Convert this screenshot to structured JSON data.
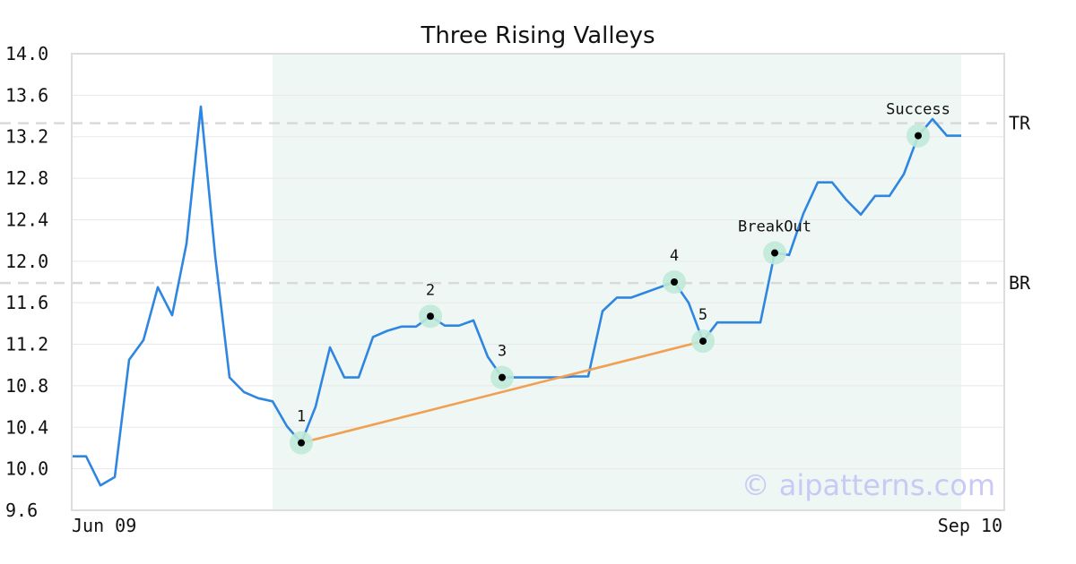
{
  "chart_data": {
    "type": "line",
    "title": "Three Rising Valleys",
    "ylim": [
      9.6,
      14.0
    ],
    "y_ticks": [
      "14.0",
      "13.6",
      "13.2",
      "12.8",
      "12.4",
      "12.0",
      "11.6",
      "11.2",
      "10.8",
      "10.4",
      "10.0",
      "9.6"
    ],
    "x_labels": {
      "start": "Jun 09",
      "end": "Sep 10"
    },
    "grid": true,
    "series": [
      {
        "values": [
          10.12,
          10.12,
          9.84,
          9.92,
          11.05,
          11.24,
          11.75,
          11.48,
          12.17,
          13.49,
          12.05,
          10.88,
          10.74,
          10.68,
          10.65,
          10.41,
          10.25,
          10.6,
          11.17,
          10.88,
          10.88,
          11.27,
          11.33,
          11.37,
          11.37,
          11.47,
          11.38,
          11.38,
          11.43,
          11.08,
          10.88,
          10.88,
          10.88,
          10.88,
          10.88,
          10.89,
          10.89,
          11.52,
          11.65,
          11.65,
          11.7,
          11.75,
          11.8,
          11.6,
          11.23,
          11.41,
          11.41,
          11.41,
          11.41,
          12.08,
          12.06,
          12.46,
          12.76,
          12.76,
          12.59,
          12.45,
          12.63,
          12.63,
          12.84,
          13.21,
          13.37,
          13.21,
          13.21
        ]
      }
    ],
    "pattern_region": {
      "start_index": 14,
      "end_index": 62
    },
    "levels": [
      {
        "label": "TR",
        "value": 13.33
      },
      {
        "label": "BR",
        "value": 11.79
      }
    ],
    "trendline": {
      "from_index": 16,
      "to_index": 44
    },
    "points": [
      {
        "label": "1",
        "index": 16,
        "value": 10.25
      },
      {
        "label": "2",
        "index": 25,
        "value": 11.47
      },
      {
        "label": "3",
        "index": 30,
        "value": 10.88
      },
      {
        "label": "4",
        "index": 42,
        "value": 11.8
      },
      {
        "label": "5",
        "index": 44,
        "value": 11.23
      },
      {
        "label": "BreakOut",
        "index": 49,
        "value": 12.08
      },
      {
        "label": "Success",
        "index": 59,
        "value": 13.21
      }
    ],
    "colors": {
      "line": "#2f86e0",
      "region": "#eef7f3",
      "trendline": "#f0a050",
      "marker_halo": "#bfe9d8",
      "marker_dot": "#000000",
      "level": "#d9d9d9",
      "grid": "#e8e8e8",
      "frame": "#dddddd"
    }
  },
  "watermark": "© aipatterns.com"
}
